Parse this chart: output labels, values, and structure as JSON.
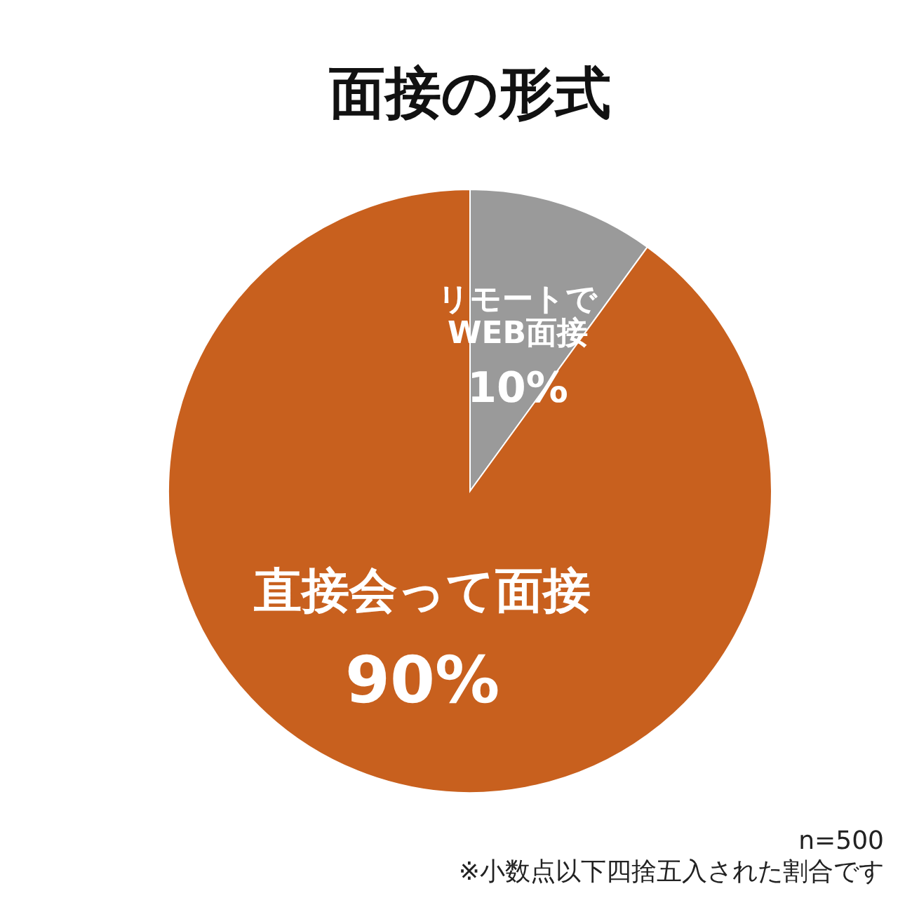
{
  "chart_data": {
    "type": "pie",
    "title": "面接の形式",
    "categories": [
      "リモートで\nWEB面接",
      "直接会って面接"
    ],
    "values": [
      10,
      90
    ],
    "value_labels": [
      "10%",
      "90%"
    ],
    "colors": [
      "#9a9a9a",
      "#c8601e"
    ],
    "annotations": [
      "n=500",
      "※小数点以下四捨五入された割合です"
    ]
  }
}
